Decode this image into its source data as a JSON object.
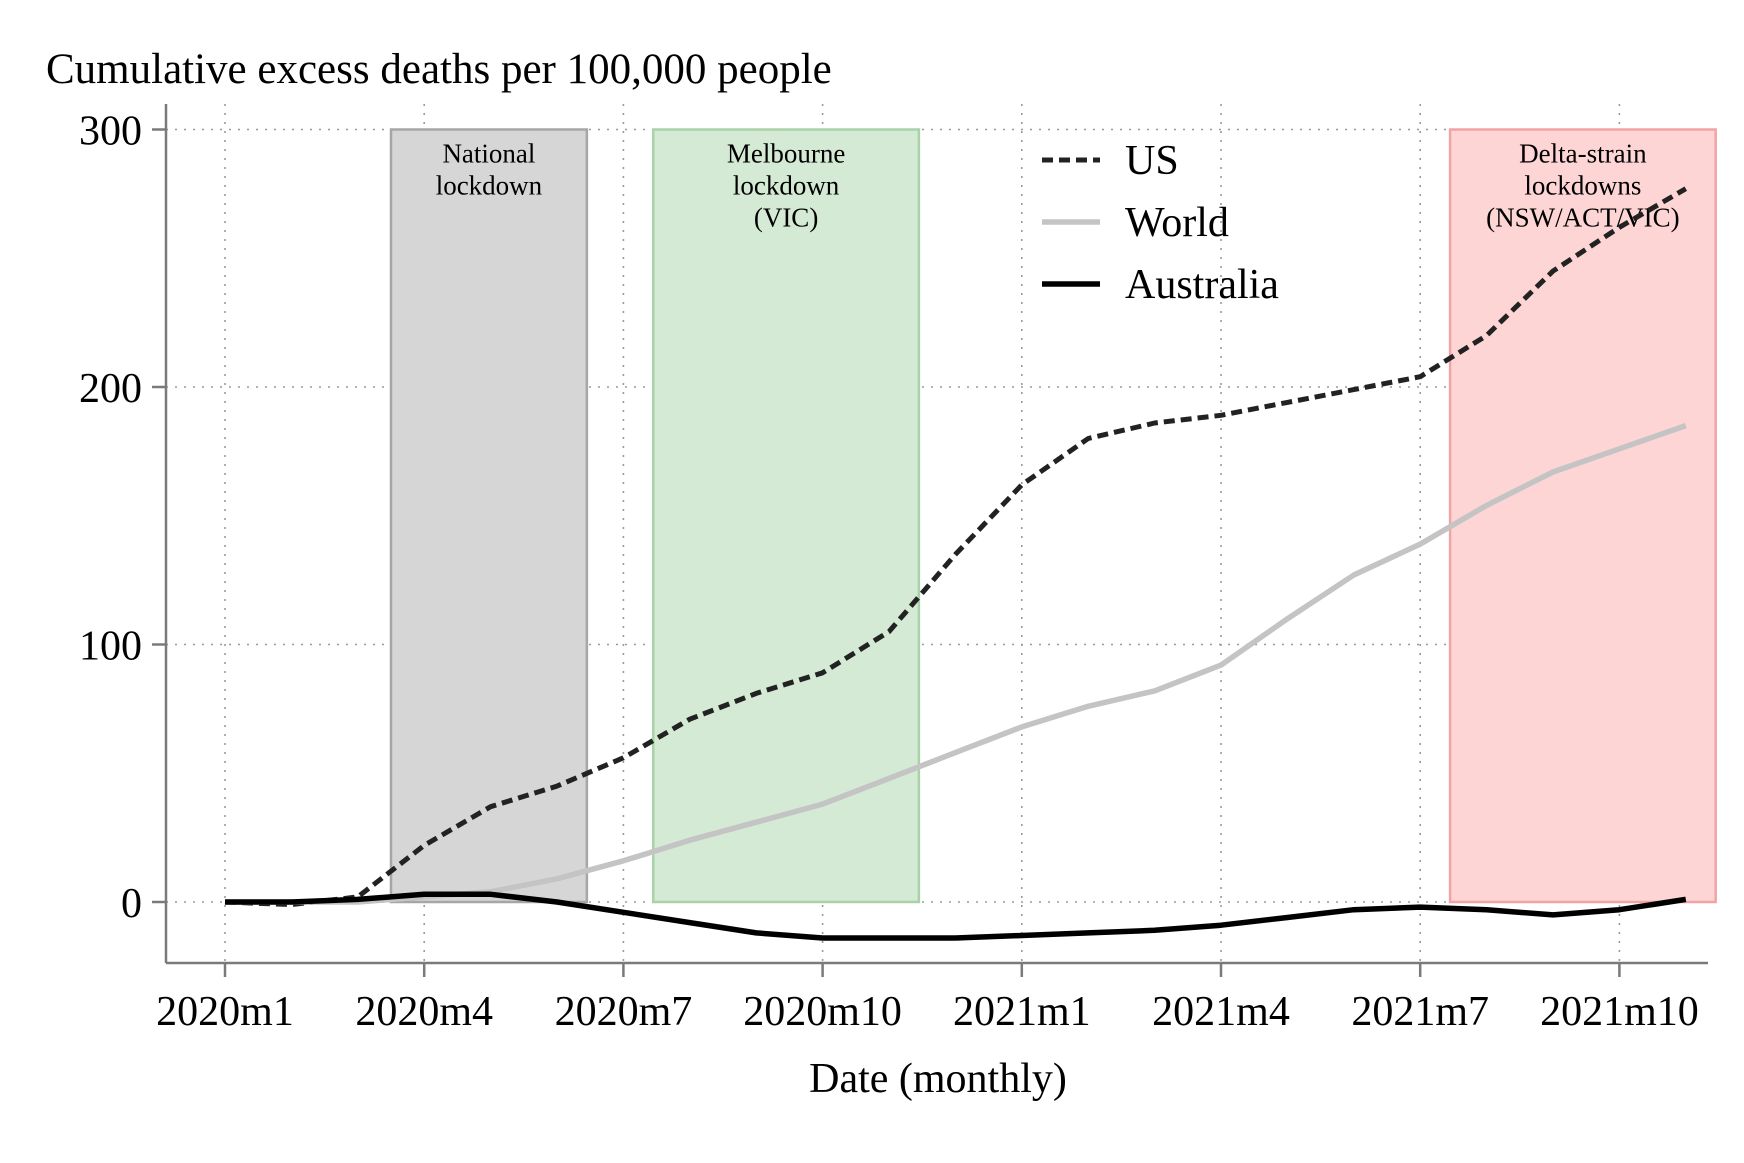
{
  "chart_data": {
    "type": "line",
    "title": "Cumulative excess deaths per 100,000 people",
    "xlabel": "Date (monthly)",
    "ylabel": "",
    "x": [
      "2020m1",
      "2020m2",
      "2020m3",
      "2020m4",
      "2020m5",
      "2020m6",
      "2020m7",
      "2020m8",
      "2020m9",
      "2020m10",
      "2020m11",
      "2020m12",
      "2021m1",
      "2021m2",
      "2021m3",
      "2021m4",
      "2021m5",
      "2021m6",
      "2021m7",
      "2021m8",
      "2021m9",
      "2021m10",
      "2021m11"
    ],
    "x_ticks": [
      "2020m1",
      "2020m4",
      "2020m7",
      "2020m10",
      "2021m1",
      "2021m4",
      "2021m7",
      "2021m10"
    ],
    "y_ticks": [
      0,
      100,
      200,
      300
    ],
    "ylim": [
      -24,
      305
    ],
    "grid": true,
    "legend_position": "top-center",
    "series": [
      {
        "name": "US",
        "style": "dashed",
        "color": "#222222",
        "values": [
          0,
          -1,
          2,
          22,
          37,
          45,
          56,
          71,
          81,
          89,
          105,
          135,
          162,
          180,
          186,
          189,
          194,
          199,
          204,
          220,
          245,
          262,
          277
        ]
      },
      {
        "name": "World",
        "style": "solid",
        "color": "#c4c4c4",
        "values": [
          0,
          0,
          0,
          2,
          4,
          9,
          16,
          24,
          31,
          38,
          48,
          58,
          68,
          76,
          82,
          92,
          110,
          127,
          139,
          154,
          167,
          176,
          185
        ]
      },
      {
        "name": "Australia",
        "style": "solid",
        "color": "#000000",
        "values": [
          0,
          0,
          1,
          3,
          3,
          0,
          -4,
          -8,
          -12,
          -14,
          -14,
          -14,
          -13,
          -12,
          -11,
          -9,
          -6,
          -3,
          -2,
          -3,
          -5,
          -3,
          1
        ]
      }
    ],
    "shaded_periods": [
      {
        "label_lines": [
          "National",
          "lockdown"
        ],
        "start": 2.5,
        "end": 5.45,
        "ymin": 0,
        "ymax": 300,
        "fill": "#d6d6d6",
        "edge": "#a6a6a6"
      },
      {
        "label_lines": [
          "Melbourne",
          "lockdown",
          "(VIC)"
        ],
        "start": 6.45,
        "end": 10.45,
        "ymin": 0,
        "ymax": 300,
        "fill": "#d5ead4",
        "edge": "#a9d2a8"
      },
      {
        "label_lines": [
          "Delta-strain",
          "lockdowns",
          "(NSW/ACT/VIC)"
        ],
        "start": 18.45,
        "end": 22.45,
        "ymin": 0,
        "ymax": 300,
        "fill": "#fdd5d5",
        "edge": "#f2a4a4"
      }
    ]
  }
}
